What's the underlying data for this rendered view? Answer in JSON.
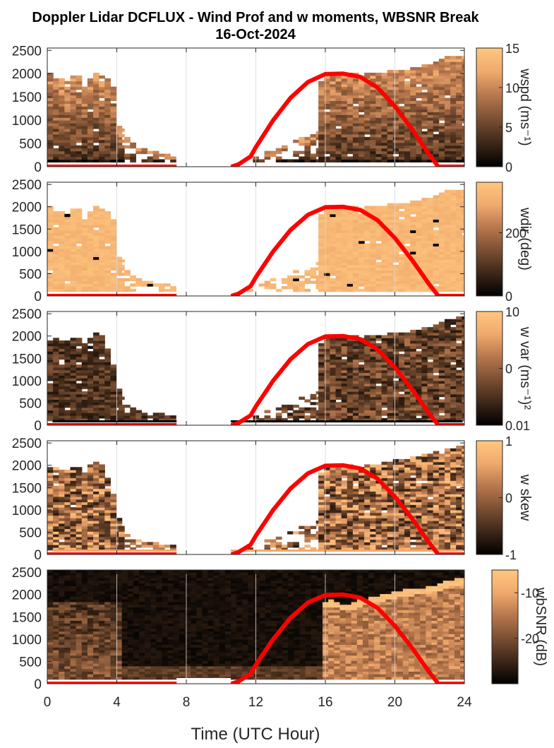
{
  "figure": {
    "title_line1": "Doppler Lidar DCFLUX - Wind Prof and w moments, WBSNR Break",
    "title_line2": "16-Oct-2024",
    "xlabel": "Time (UTC Hour)"
  },
  "colormap": [
    "#000000",
    "#3d2718",
    "#7a4f32",
    "#b7774d",
    "#f0a96d",
    "#ffc77f"
  ],
  "colors": {
    "curve": "#ff0000",
    "grid": "#d9d9d9",
    "axis": "#262626"
  },
  "chart_data": [
    {
      "type": "heatmap",
      "panel": "wspd",
      "cblabel": "wspd (ms⁻¹)",
      "clim": [
        0,
        15
      ],
      "cbticks": [
        "0",
        "5",
        "10",
        "15"
      ],
      "xlim": [
        0,
        24
      ],
      "ylim": [
        0,
        2550
      ],
      "xticks": [
        0,
        4,
        8,
        12,
        16,
        20,
        24
      ],
      "yticks": [
        0,
        500,
        1000,
        1500,
        2000,
        2500
      ],
      "yticklabels": [
        "0",
        "500",
        "1000",
        "1500",
        "2000",
        "2500"
      ],
      "show_xticklabels": false,
      "grid": true
    },
    {
      "type": "heatmap",
      "panel": "wdir",
      "cblabel": "wdir (deg)",
      "clim": [
        0,
        360
      ],
      "cbticks": [
        "0",
        "200"
      ],
      "xlim": [
        0,
        24
      ],
      "ylim": [
        0,
        2550
      ],
      "xticks": [
        0,
        4,
        8,
        12,
        16,
        20,
        24
      ],
      "yticks": [
        0,
        500,
        1000,
        1500,
        2000,
        2500
      ],
      "yticklabels": [
        "0",
        "500",
        "1000",
        "1500",
        "2000",
        "2500"
      ],
      "show_xticklabels": false,
      "grid": true
    },
    {
      "type": "heatmap",
      "panel": "wvar",
      "cblabel": "w var (ms⁻¹)²",
      "clim": [
        0.01,
        10
      ],
      "cbticks": [
        "0.01",
        "0",
        "10"
      ],
      "log_scale": true,
      "xlim": [
        0,
        24
      ],
      "ylim": [
        0,
        2550
      ],
      "xticks": [
        0,
        4,
        8,
        12,
        16,
        20,
        24
      ],
      "yticks": [
        0,
        500,
        1000,
        1500,
        2000,
        2500
      ],
      "yticklabels": [
        "0",
        "500",
        "1000",
        "1500",
        "2000",
        "2500"
      ],
      "show_xticklabels": false,
      "grid": true
    },
    {
      "type": "heatmap",
      "panel": "wskew",
      "cblabel": "w skew",
      "clim": [
        -1,
        1
      ],
      "cbticks": [
        "-1",
        "0",
        "1"
      ],
      "xlim": [
        0,
        24
      ],
      "ylim": [
        0,
        2550
      ],
      "xticks": [
        0,
        4,
        8,
        12,
        16,
        20,
        24
      ],
      "yticks": [
        0,
        500,
        1000,
        1500,
        2000,
        2500
      ],
      "yticklabels": [
        "0",
        "500",
        "1000",
        "1500",
        "2000",
        "2500"
      ],
      "show_xticklabels": false,
      "grid": true
    },
    {
      "type": "heatmap",
      "panel": "wbsnr",
      "cblabel": "wbSNR (dB)",
      "clim": [
        -30,
        -5
      ],
      "cbticks": [
        "-20",
        "-10"
      ],
      "xlim": [
        0,
        24
      ],
      "ylim": [
        0,
        2550
      ],
      "xticks": [
        0,
        4,
        8,
        12,
        16,
        20,
        24
      ],
      "xticklabels": [
        "0",
        "4",
        "8",
        "12",
        "16",
        "20",
        "24"
      ],
      "yticks": [
        0,
        500,
        1000,
        1500,
        2000,
        2500
      ],
      "yticklabels": [
        "0",
        "500",
        "1000",
        "1500",
        "2000",
        "2500"
      ],
      "show_xticklabels": true,
      "grid": true
    }
  ],
  "overlay_curve": {
    "type": "line",
    "x": [
      0,
      1,
      2,
      3,
      4,
      5,
      6,
      7,
      7.4,
      10.6,
      11,
      11.7,
      12,
      13,
      14,
      15,
      16,
      17,
      18,
      19,
      20,
      21,
      22,
      22.5,
      23,
      24
    ],
    "y": [
      0,
      0,
      0,
      0,
      0,
      0,
      0,
      0,
      0,
      0,
      50,
      220,
      420,
      1000,
      1480,
      1820,
      1990,
      2000,
      1930,
      1700,
      1300,
      800,
      250,
      0,
      0,
      0
    ]
  },
  "extents": {
    "wspd": {
      "left_end": 4.1,
      "right_start": 15.6,
      "left_top": [
        [
          0,
          2000
        ],
        [
          0.5,
          1900
        ],
        [
          1,
          1780
        ],
        [
          1.5,
          2000
        ],
        [
          2,
          1700
        ],
        [
          2.5,
          2000
        ],
        [
          3,
          1900
        ],
        [
          3.6,
          1800
        ],
        [
          3.9,
          900
        ],
        [
          4.2,
          700
        ],
        [
          5,
          400
        ],
        [
          6,
          300
        ],
        [
          7,
          200
        ]
      ],
      "right_top": [
        [
          15.6,
          1800
        ],
        [
          16,
          1950
        ],
        [
          17,
          2000
        ],
        [
          18,
          1950
        ],
        [
          19,
          2000
        ],
        [
          20,
          2050
        ],
        [
          21,
          2100
        ],
        [
          22,
          2200
        ],
        [
          23,
          2350
        ],
        [
          23.8,
          2380
        ]
      ]
    },
    "wdir": {
      "left_end": 4.1,
      "right_start": 15.6,
      "left_top": [
        [
          0,
          2000
        ],
        [
          0.5,
          1900
        ],
        [
          1,
          1780
        ],
        [
          1.5,
          2000
        ],
        [
          2,
          1700
        ],
        [
          2.5,
          2000
        ],
        [
          3,
          1900
        ],
        [
          3.6,
          1800
        ],
        [
          3.9,
          900
        ],
        [
          4.2,
          700
        ],
        [
          5,
          400
        ],
        [
          6,
          300
        ],
        [
          7,
          200
        ]
      ],
      "right_top": [
        [
          15.6,
          1800
        ],
        [
          16,
          1950
        ],
        [
          17,
          2000
        ],
        [
          18,
          1950
        ],
        [
          19,
          2000
        ],
        [
          20,
          2050
        ],
        [
          21,
          2100
        ],
        [
          22,
          2200
        ],
        [
          23,
          2350
        ],
        [
          23.8,
          2380
        ]
      ]
    },
    "wvar": {
      "left_end": 4.1,
      "right_start": 15.6,
      "left_top": [
        [
          0.3,
          1950
        ],
        [
          1,
          1850
        ],
        [
          1.5,
          2000
        ],
        [
          2,
          1800
        ],
        [
          2.5,
          2050
        ],
        [
          3,
          2000
        ],
        [
          3.5,
          1500
        ],
        [
          3.9,
          900
        ],
        [
          4.2,
          500
        ],
        [
          5,
          300
        ],
        [
          6,
          250
        ],
        [
          7,
          200
        ]
      ],
      "right_top": [
        [
          15.6,
          1800
        ],
        [
          16,
          1950
        ],
        [
          17,
          2000
        ],
        [
          18,
          1950
        ],
        [
          19,
          2000
        ],
        [
          20,
          2050
        ],
        [
          21,
          2100
        ],
        [
          22,
          2200
        ],
        [
          23,
          2350
        ],
        [
          23.8,
          2400
        ]
      ]
    },
    "wskew": {
      "left_end": 4.1,
      "right_start": 15.6,
      "left_top": [
        [
          0.3,
          1950
        ],
        [
          1,
          1850
        ],
        [
          1.5,
          2000
        ],
        [
          2,
          1800
        ],
        [
          2.5,
          2100
        ],
        [
          3,
          2000
        ],
        [
          3.5,
          1500
        ],
        [
          3.9,
          900
        ],
        [
          4.2,
          500
        ],
        [
          5,
          300
        ],
        [
          6,
          250
        ],
        [
          7,
          200
        ]
      ],
      "right_top": [
        [
          15.6,
          1800
        ],
        [
          16,
          1950
        ],
        [
          17,
          2000
        ],
        [
          18,
          1950
        ],
        [
          19,
          2000
        ],
        [
          20,
          2100
        ],
        [
          21,
          2150
        ],
        [
          22,
          2250
        ],
        [
          23,
          2350
        ],
        [
          23.8,
          2400
        ]
      ]
    },
    "wbsnr": {
      "full": true,
      "layer_start": 15.6,
      "layer_top": [
        [
          15.6,
          1700
        ],
        [
          16,
          1800
        ],
        [
          17,
          1700
        ],
        [
          18,
          1800
        ],
        [
          19,
          1900
        ],
        [
          20,
          2000
        ],
        [
          21,
          2050
        ],
        [
          22,
          2100
        ],
        [
          23,
          2250
        ],
        [
          24,
          2300
        ]
      ]
    }
  }
}
